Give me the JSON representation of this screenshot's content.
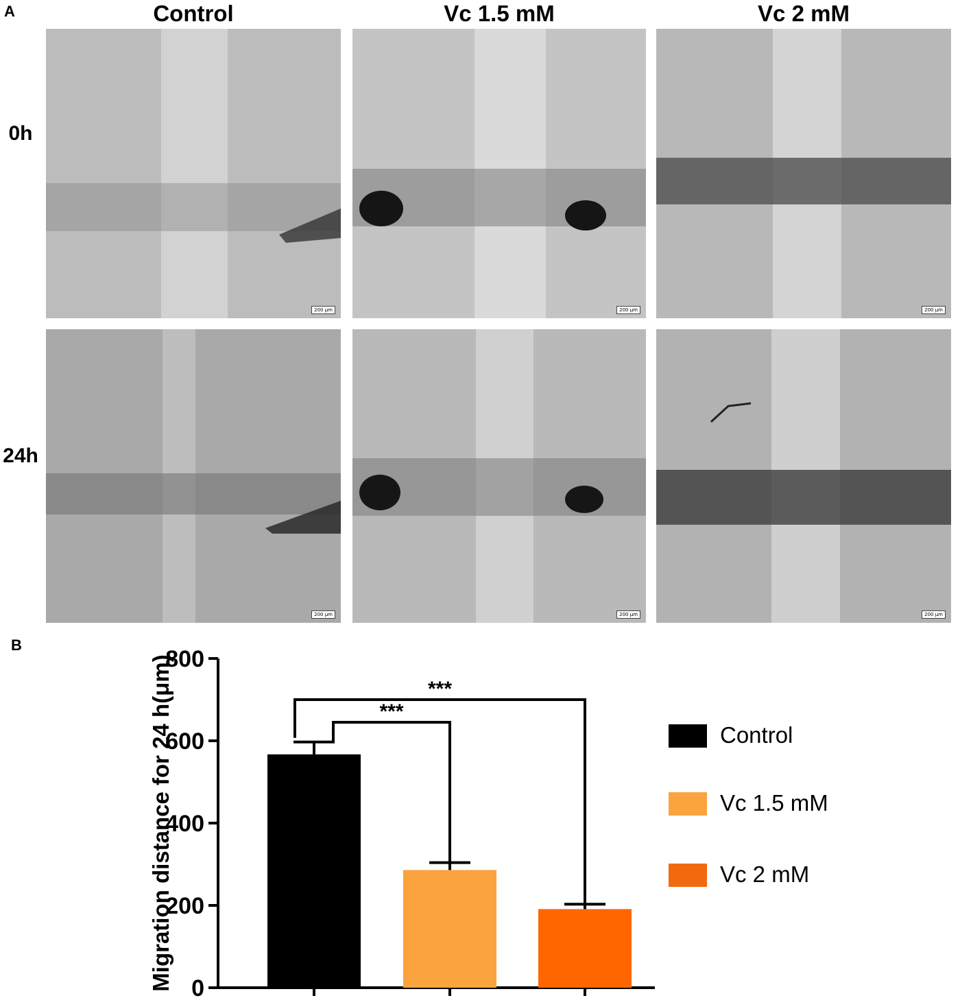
{
  "panels": {
    "a": "A",
    "b": "B"
  },
  "columns": [
    "Control",
    "Vc 1.5 mM",
    "Vc 2 mM"
  ],
  "rows": [
    "0h",
    "24h"
  ],
  "scale_bar": "200 μm",
  "colors": {
    "control": "#000000",
    "vc15": "#FBA33F",
    "vc2": "#FF6600"
  },
  "chart_data": {
    "type": "bar",
    "categories": [
      "Control",
      "Vc 1.5 mM",
      "Vc 2 mM"
    ],
    "values": [
      567,
      286,
      191
    ],
    "errors": [
      30,
      18,
      12
    ],
    "ylabel": "Migration distance for 24 h(μm)",
    "ylim": [
      0,
      800
    ],
    "yticks": [
      0,
      200,
      400,
      600,
      800
    ],
    "legend": [
      "Control",
      "Vc 1.5 mM",
      "Vc 2 mM"
    ],
    "legend_position": "right",
    "significance": [
      {
        "from": "Control",
        "to": "Vc 1.5 mM",
        "label": "***"
      },
      {
        "from": "Control",
        "to": "Vc 2 mM",
        "label": "***"
      }
    ]
  }
}
